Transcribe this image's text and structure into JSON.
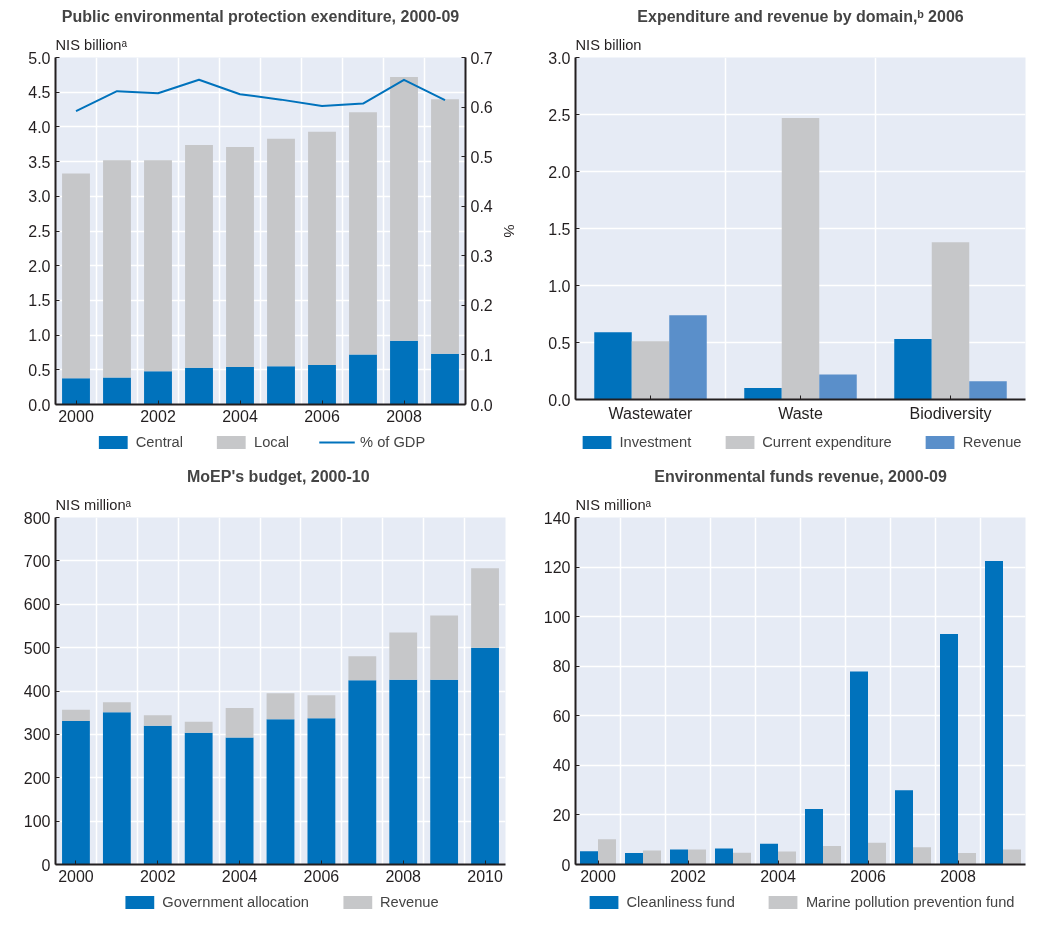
{
  "chart_data": [
    {
      "type": "bar",
      "title": "Public environmental protection exenditure, 2000-09",
      "ylabel": "NIS billionᵃ",
      "y2label": "%",
      "stacked": true,
      "x": [
        2000,
        2001,
        2002,
        2003,
        2004,
        2005,
        2006,
        2007,
        2008,
        2009
      ],
      "xlim": [
        1999.5,
        2009.5
      ],
      "xticks": [
        2000,
        2002,
        2004,
        2006,
        2008
      ],
      "ylim": [
        0,
        5
      ],
      "yticks": [
        {
          "value": 0,
          "label": "0.0"
        },
        0.5,
        {
          "value": 1,
          "label": "1.0"
        },
        1.5,
        {
          "value": 2,
          "label": "2.0"
        },
        2.5,
        {
          "value": 3,
          "label": "3.0"
        },
        3.5,
        {
          "value": 4,
          "label": "4.0"
        },
        4.5,
        {
          "value": 5,
          "label": "5.0"
        }
      ],
      "y2lim": [
        0,
        0.7
      ],
      "y2ticks": [
        {
          "value": 0,
          "label": "0.0"
        },
        0.1,
        0.2,
        0.3,
        0.4,
        0.5,
        0.6,
        0.7
      ],
      "grid": true,
      "legend": "bottom",
      "series": [
        {
          "name": "Central",
          "color": "#0072bc",
          "values": [
            0.38,
            0.39,
            0.48,
            0.53,
            0.54,
            0.55,
            0.57,
            0.72,
            0.92,
            0.73
          ]
        },
        {
          "name": "Local",
          "color": "#c6c7c9",
          "values": [
            2.95,
            3.13,
            3.04,
            3.21,
            3.17,
            3.28,
            3.36,
            3.49,
            3.8,
            3.67
          ]
        },
        {
          "name": "% of GDP",
          "type": "line",
          "axis": "y2",
          "color": "#0072bc",
          "values": [
            0.592,
            0.632,
            0.628,
            0.655,
            0.626,
            0.615,
            0.602,
            0.607,
            0.655,
            0.614
          ]
        }
      ]
    },
    {
      "type": "bar",
      "title": "Expenditure and revenue by domain,ᵇ 2006",
      "ylabel": "NIS billion",
      "categories": [
        "Wastewater",
        "Waste",
        "Biodiversity"
      ],
      "ylim": [
        0,
        3
      ],
      "yticks": [
        {
          "value": 0,
          "label": "0.0"
        },
        0.5,
        {
          "value": 1,
          "label": "1.0"
        },
        1.5,
        {
          "value": 2,
          "label": "2.0"
        },
        2.5,
        {
          "value": 3,
          "label": "3.0"
        }
      ],
      "grid": true,
      "legend": "bottom",
      "series": [
        {
          "name": "Investment",
          "color": "#0072bc",
          "values": [
            0.59,
            0.1,
            0.53
          ]
        },
        {
          "name": "Current expenditure",
          "color": "#c6c7c9",
          "values": [
            0.51,
            2.47,
            1.38
          ]
        },
        {
          "name": "Revenue",
          "color": "#5a8fca",
          "values": [
            0.74,
            0.22,
            0.16
          ]
        }
      ]
    },
    {
      "type": "bar",
      "title": "MoEP's budget,  2000-10",
      "ylabel": "NIS millionᵃ",
      "stacked": true,
      "x": [
        2000,
        2001,
        2002,
        2003,
        2004,
        2005,
        2006,
        2007,
        2008,
        2009,
        2010
      ],
      "xlim": [
        1999.5,
        2010.5
      ],
      "xticks": [
        2000,
        2002,
        2004,
        2006,
        2008,
        2010
      ],
      "ylim": [
        0,
        800
      ],
      "yticks": [
        0,
        100,
        200,
        300,
        400,
        500,
        600,
        700,
        800
      ],
      "grid": true,
      "legend": "bottom",
      "series": [
        {
          "name": "Government allocation",
          "color": "#0072bc",
          "values": [
            331,
            351,
            320,
            304,
            293,
            335,
            337,
            425,
            426,
            426,
            500
          ]
        },
        {
          "name": "Revenue",
          "color": "#c6c7c9",
          "values": [
            26,
            23,
            24,
            25,
            68,
            60,
            53,
            55,
            109,
            148,
            183
          ]
        }
      ]
    },
    {
      "type": "bar",
      "title": "Environmental funds revenue, 2000-09",
      "ylabel": "NIS millionᵃ",
      "x": [
        2000,
        2001,
        2002,
        2003,
        2004,
        2005,
        2006,
        2007,
        2008,
        2009
      ],
      "xlim": [
        1999.5,
        2009.5
      ],
      "xticks": [
        2000,
        2002,
        2004,
        2006,
        2008
      ],
      "ylim": [
        0,
        140
      ],
      "yticks": [
        0,
        20,
        40,
        60,
        80,
        100,
        120,
        140
      ],
      "grid": true,
      "legend": "bottom",
      "series": [
        {
          "name": "Cleanliness fund",
          "color": "#0072bc",
          "values": [
            5.3,
            4.6,
            6.1,
            6.5,
            8.4,
            22.4,
            77.9,
            30.0,
            93.0,
            122.4
          ]
        },
        {
          "name": "Marine pollution prevention fund",
          "color": "#c6c7c9",
          "values": [
            10.2,
            5.6,
            6.1,
            4.7,
            5.2,
            7.5,
            8.8,
            7.0,
            4.6,
            6.1
          ]
        }
      ]
    }
  ]
}
